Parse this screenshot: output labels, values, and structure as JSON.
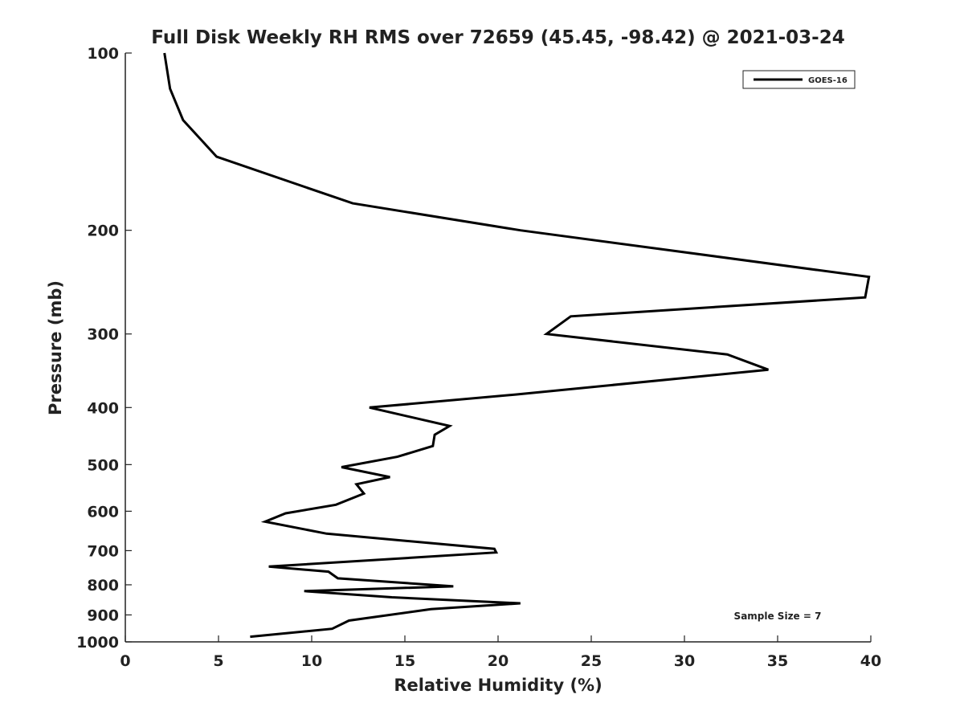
{
  "chart_data": {
    "type": "line",
    "title": "Full Disk Weekly RH RMS over 72659 (45.45, -98.42) @ 2021-03-24",
    "xlabel": "Relative Humidity (%)",
    "ylabel": "Pressure (mb)",
    "xlim": [
      0,
      40
    ],
    "ylim": [
      100,
      1000
    ],
    "y_scale": "log",
    "y_reversed": true,
    "grid": false,
    "x_ticks": [
      0,
      5,
      10,
      15,
      20,
      25,
      30,
      35,
      40
    ],
    "y_ticks": [
      100,
      200,
      300,
      400,
      500,
      600,
      700,
      800,
      900,
      1000
    ],
    "legend_position": "top-right",
    "line_color": "#000000",
    "annotation": "Sample Size = 7",
    "series": [
      {
        "name": "GOES-16",
        "x": [
          2.1,
          2.4,
          3.1,
          4.9,
          12.2,
          21.2,
          39.9,
          39.7,
          23.9,
          22.6,
          32.3,
          34.5,
          21.0,
          13.1,
          17.4,
          16.6,
          16.5,
          14.6,
          11.6,
          14.2,
          12.4,
          12.8,
          11.3,
          8.6,
          7.5,
          10.8,
          19.8,
          19.9,
          7.7,
          10.9,
          11.4,
          17.6,
          9.6,
          14.3,
          21.2,
          16.4,
          12.0,
          11.1,
          6.7
        ],
        "y": [
          100,
          115,
          130,
          150,
          180,
          200,
          240,
          260,
          280,
          300,
          325,
          345,
          380,
          400,
          430,
          445,
          465,
          485,
          505,
          525,
          540,
          560,
          585,
          605,
          625,
          655,
          695,
          705,
          745,
          760,
          780,
          805,
          820,
          840,
          860,
          880,
          920,
          950,
          980
        ]
      }
    ]
  }
}
